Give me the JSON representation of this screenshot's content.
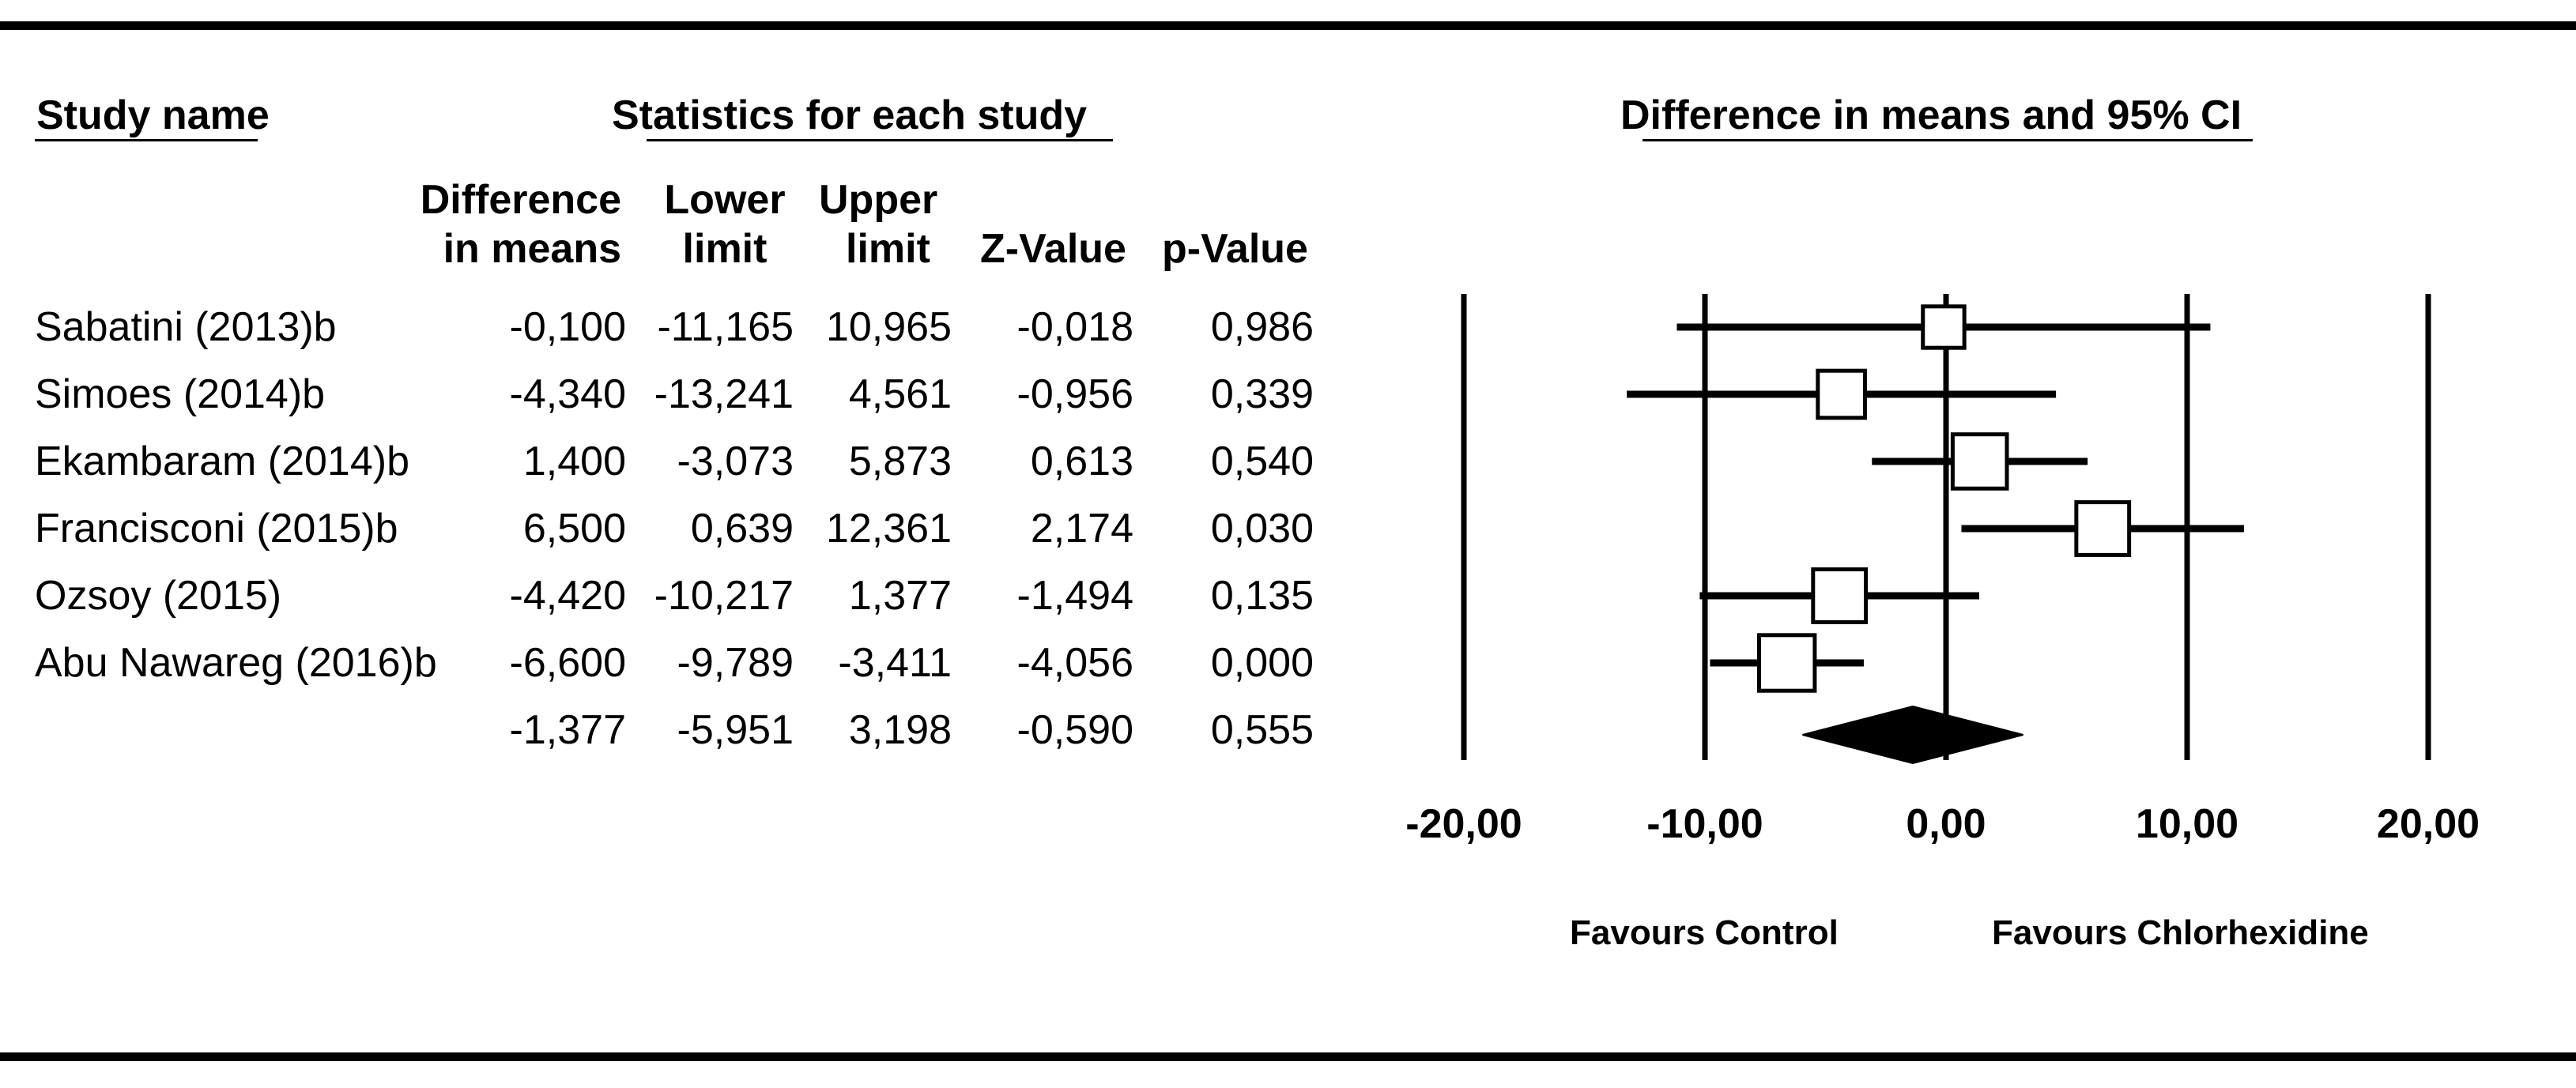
{
  "header": {
    "study_name": "Study name",
    "statistics": "Statistics for each study",
    "plot_title": "Difference in means and 95% CI"
  },
  "columns": [
    {
      "line1": "Difference",
      "line2": "in means"
    },
    {
      "line1": "Lower",
      "line2": "limit"
    },
    {
      "line1": "Upper",
      "line2": "limit"
    },
    {
      "line1": "",
      "line2": "Z-Value"
    },
    {
      "line1": "",
      "line2": "p-Value"
    }
  ],
  "rows": [
    {
      "name": "Sabatini (2013)b",
      "diff": "-0,100",
      "lower": "-11,165",
      "upper": "10,965",
      "z": "-0,018",
      "p": "0,986"
    },
    {
      "name": "Simoes (2014)b",
      "diff": "-4,340",
      "lower": "-13,241",
      "upper": "4,561",
      "z": "-0,956",
      "p": "0,339"
    },
    {
      "name": "Ekambaram (2014)b",
      "diff": "1,400",
      "lower": "-3,073",
      "upper": "5,873",
      "z": "0,613",
      "p": "0,540"
    },
    {
      "name": "Francisconi (2015)b",
      "diff": "6,500",
      "lower": "0,639",
      "upper": "12,361",
      "z": "2,174",
      "p": "0,030"
    },
    {
      "name": "Ozsoy (2015)",
      "diff": "-4,420",
      "lower": "-10,217",
      "upper": "1,377",
      "z": "-1,494",
      "p": "0,135"
    },
    {
      "name": "Abu Nawareg (2016)b",
      "diff": "-6,600",
      "lower": "-9,789",
      "upper": "-3,411",
      "z": "-4,056",
      "p": "0,000"
    },
    {
      "name": "",
      "diff": "-1,377",
      "lower": "-5,951",
      "upper": "3,198",
      "z": "-0,590",
      "p": "0,555"
    }
  ],
  "favours": {
    "left": "Favours Control",
    "right": "Favours Chlorhexidine"
  },
  "chart_data": {
    "type": "forest",
    "title": "Difference in means and 95% CI",
    "xlim": [
      -20,
      20
    ],
    "xticks": [
      -20,
      -10,
      0,
      10,
      20
    ],
    "xtick_labels": [
      "-20,00",
      "-10,00",
      "0,00",
      "10,00",
      "20,00"
    ],
    "studies": [
      {
        "name": "Sabatini (2013)b",
        "estimate": -0.1,
        "lower": -11.165,
        "upper": 10.965,
        "weight": 0.4
      },
      {
        "name": "Simoes (2014)b",
        "estimate": -4.34,
        "lower": -13.241,
        "upper": 4.561,
        "weight": 0.6
      },
      {
        "name": "Ekambaram (2014)b",
        "estimate": 1.4,
        "lower": -3.073,
        "upper": 5.873,
        "weight": 0.85
      },
      {
        "name": "Francisconi (2015)b",
        "estimate": 6.5,
        "lower": 0.639,
        "upper": 12.361,
        "weight": 0.8
      },
      {
        "name": "Ozsoy (2015)",
        "estimate": -4.42,
        "lower": -10.217,
        "upper": 1.377,
        "weight": 0.8
      },
      {
        "name": "Abu Nawareg (2016)b",
        "estimate": -6.6,
        "lower": -9.789,
        "upper": -3.411,
        "weight": 0.9
      }
    ],
    "summary": {
      "estimate": -1.377,
      "lower": -5.951,
      "upper": 3.198
    }
  }
}
